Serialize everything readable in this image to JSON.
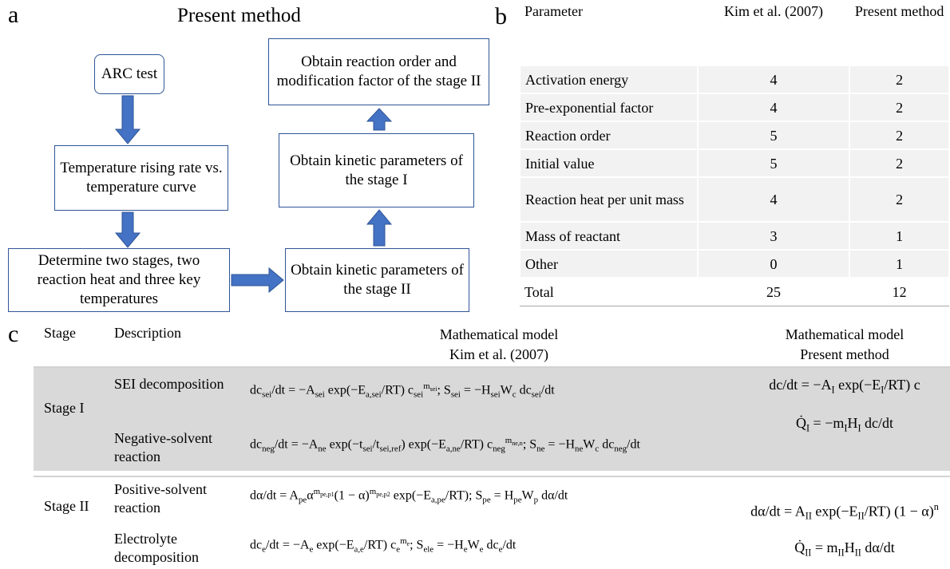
{
  "panel_a": {
    "label": "a",
    "title": "Present method",
    "nodes": [
      "ARC test",
      "Temperature rising rate vs. temperature curve",
      "Determine two stages, two reaction heat and three key temperatures",
      "Obtain kinetic parameters of the stage II",
      "Obtain kinetic parameters of the stage I",
      "Obtain reaction order and modification factor of the stage II"
    ]
  },
  "panel_b": {
    "label": "b",
    "table": {
      "header": [
        "Parameter",
        "Kim et al. (2007)",
        "Present method"
      ],
      "rows": [
        [
          "Activation energy",
          "4",
          "2"
        ],
        [
          "Pre-exponential factor",
          "4",
          "2"
        ],
        [
          "Reaction order",
          "5",
          "2"
        ],
        [
          "Initial value",
          "5",
          "2"
        ],
        [
          "Reaction heat per unit mass",
          "4",
          "2"
        ],
        [
          "Mass of reactant",
          "3",
          "1"
        ],
        [
          "Other",
          "0",
          "1"
        ],
        [
          "Total",
          "25",
          "12"
        ]
      ]
    }
  },
  "panel_c": {
    "label": "c",
    "table": {
      "header": {
        "stage": "Stage",
        "description": "Description",
        "kim": [
          "Mathematical model",
          "Kim et al. (2007)"
        ],
        "present": [
          "Mathematical model",
          "Present method"
        ]
      },
      "groups": [
        {
          "stage": "Stage I",
          "rows": [
            {
              "description": "SEI decomposition",
              "kim_model": [
                "dc",
                {
                  "sub": "sei"
                },
                "/dt = −A",
                {
                  "sub": "sei"
                },
                " exp(−E",
                {
                  "sub": "a,sei"
                },
                "/RT) c",
                {
                  "sub": "sei"
                },
                {
                  "sup": "m"
                },
                {
                  "supsub": "sei"
                },
                ";  S",
                {
                  "sub": "sei"
                },
                " = −H",
                {
                  "sub": "sei"
                },
                "W",
                {
                  "sub": "c"
                },
                " dc",
                {
                  "sub": "sei"
                },
                "/dt"
              ]
            },
            {
              "description": "Negative-solvent reaction",
              "kim_model": [
                "dc",
                {
                  "sub": "neg"
                },
                "/dt = −A",
                {
                  "sub": "ne"
                },
                " exp(−t",
                {
                  "sub": "sei"
                },
                "/t",
                {
                  "sub": "sei,ref"
                },
                ") exp(−E",
                {
                  "sub": "a,ne"
                },
                "/RT) c",
                {
                  "sub": "neg"
                },
                {
                  "sup": "m"
                },
                {
                  "supsub": "ne,n"
                },
                ";  S",
                {
                  "sub": "ne"
                },
                " = −H",
                {
                  "sub": "ne"
                },
                "W",
                {
                  "sub": "c"
                },
                " dc",
                {
                  "sub": "neg"
                },
                "/dt"
              ]
            }
          ],
          "present_model": [
            [
              "dc/dt = −A",
              {
                "sub": "I"
              },
              " exp(−E",
              {
                "sub": "I"
              },
              "/RT) c"
            ],
            [
              "Q̇",
              {
                "sub": "I"
              },
              " = −m",
              {
                "sub": "I"
              },
              "H",
              {
                "sub": "I"
              },
              " dc/dt"
            ]
          ]
        },
        {
          "stage": "Stage II",
          "rows": [
            {
              "description": "Positive-solvent reaction",
              "kim_model": [
                "dα/dt = A",
                {
                  "sub": "pe"
                },
                "α",
                {
                  "sup": "m"
                },
                {
                  "supsub": "pe,p1"
                },
                "(1 − α)",
                {
                  "sup": "m"
                },
                {
                  "supsub": "pe,p2"
                },
                " exp(−E",
                {
                  "sub": "a,pe"
                },
                "/RT);  S",
                {
                  "sub": "pe"
                },
                " = H",
                {
                  "sub": "pe"
                },
                "W",
                {
                  "sub": "p"
                },
                " dα/dt"
              ]
            },
            {
              "description": "Electrolyte decomposition",
              "kim_model": [
                "dc",
                {
                  "sub": "e"
                },
                "/dt = −A",
                {
                  "sub": "e"
                },
                " exp(−E",
                {
                  "sub": "a,e"
                },
                "/RT) c",
                {
                  "sub": "e"
                },
                {
                  "sup": "m"
                },
                {
                  "supsub": "e"
                },
                ";  S",
                {
                  "sub": "ele"
                },
                " = −H",
                {
                  "sub": "e"
                },
                "W",
                {
                  "sub": "e"
                },
                " dc",
                {
                  "sub": "e"
                },
                "/dt"
              ]
            }
          ],
          "present_model": [
            [
              "dα/dt = A",
              {
                "sub": "II"
              },
              " exp(−E",
              {
                "sub": "II"
              },
              "/RT) (1 − α)",
              {
                "sup": "n"
              }
            ],
            [
              "Q̇",
              {
                "sub": "II"
              },
              " = m",
              {
                "sub": "II"
              },
              "H",
              {
                "sub": "II"
              },
              " dα/dt"
            ]
          ]
        }
      ]
    }
  }
}
